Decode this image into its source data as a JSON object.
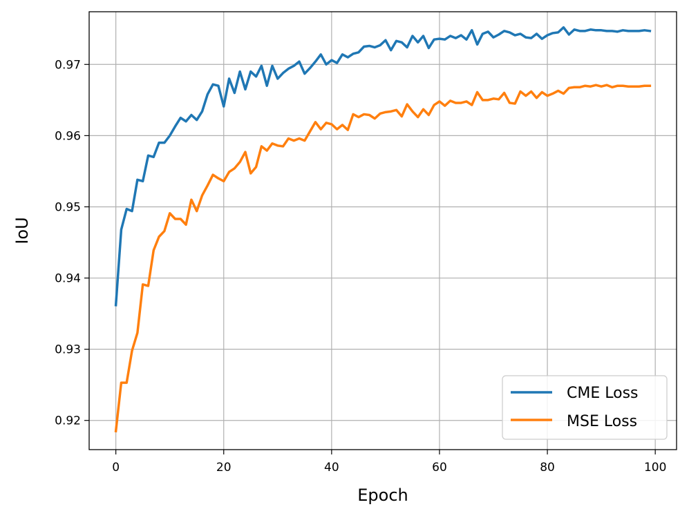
{
  "chart_data": {
    "type": "line",
    "title": "",
    "xlabel": "Epoch",
    "ylabel": "IoU",
    "xlim": [
      -4.95,
      103.95
    ],
    "ylim": [
      0.9159,
      0.9774
    ],
    "xticks": [
      0,
      20,
      40,
      60,
      80,
      100
    ],
    "xtick_labels": [
      "0",
      "20",
      "40",
      "60",
      "80",
      "100"
    ],
    "yticks": [
      0.92,
      0.93,
      0.94,
      0.95,
      0.96,
      0.97
    ],
    "ytick_labels": [
      "0.92",
      "0.93",
      "0.94",
      "0.95",
      "0.96",
      "0.97"
    ],
    "grid": true,
    "legend_position": "lower-right",
    "x": [
      0,
      1,
      2,
      3,
      4,
      5,
      6,
      7,
      8,
      9,
      10,
      11,
      12,
      13,
      14,
      15,
      16,
      17,
      18,
      19,
      20,
      21,
      22,
      23,
      24,
      25,
      26,
      27,
      28,
      29,
      30,
      31,
      32,
      33,
      34,
      35,
      36,
      37,
      38,
      39,
      40,
      41,
      42,
      43,
      44,
      45,
      46,
      47,
      48,
      49,
      50,
      51,
      52,
      53,
      54,
      55,
      56,
      57,
      58,
      59,
      60,
      61,
      62,
      63,
      64,
      65,
      66,
      67,
      68,
      69,
      70,
      71,
      72,
      73,
      74,
      75,
      76,
      77,
      78,
      79,
      80,
      81,
      82,
      83,
      84,
      85,
      86,
      87,
      88,
      89,
      90,
      91,
      92,
      93,
      94,
      95,
      96,
      97,
      98,
      99
    ],
    "series": [
      {
        "name": "CME Loss",
        "color": "#1f77b4",
        "values": [
          0.9362,
          0.9468,
          0.9497,
          0.9494,
          0.9538,
          0.9536,
          0.9572,
          0.957,
          0.959,
          0.959,
          0.96,
          0.9613,
          0.9625,
          0.962,
          0.9629,
          0.9622,
          0.9634,
          0.9658,
          0.9672,
          0.967,
          0.9641,
          0.968,
          0.966,
          0.969,
          0.9665,
          0.969,
          0.9683,
          0.9698,
          0.967,
          0.9698,
          0.968,
          0.9688,
          0.9694,
          0.9698,
          0.9704,
          0.9687,
          0.9695,
          0.9704,
          0.9714,
          0.97,
          0.9706,
          0.9702,
          0.9714,
          0.971,
          0.9715,
          0.9717,
          0.9725,
          0.9726,
          0.9724,
          0.9727,
          0.9734,
          0.972,
          0.9733,
          0.9731,
          0.9724,
          0.974,
          0.9731,
          0.974,
          0.9723,
          0.9735,
          0.9736,
          0.9735,
          0.974,
          0.9737,
          0.9741,
          0.9735,
          0.9748,
          0.9728,
          0.9743,
          0.9746,
          0.9738,
          0.9742,
          0.9747,
          0.9745,
          0.9741,
          0.9743,
          0.9738,
          0.9737,
          0.9743,
          0.9736,
          0.9741,
          0.9744,
          0.9745,
          0.9752,
          0.9742,
          0.9749,
          0.9747,
          0.9747,
          0.9749,
          0.9748,
          0.9748,
          0.9747,
          0.9747,
          0.9746,
          0.9748,
          0.9747,
          0.9747,
          0.9747,
          0.9748,
          0.9747
        ]
      },
      {
        "name": "MSE Loss",
        "color": "#ff7f0e",
        "values": [
          0.9185,
          0.9253,
          0.9253,
          0.9298,
          0.9323,
          0.9391,
          0.9389,
          0.9439,
          0.9458,
          0.9466,
          0.9491,
          0.9483,
          0.9483,
          0.9475,
          0.951,
          0.9494,
          0.9516,
          0.953,
          0.9545,
          0.954,
          0.9536,
          0.9549,
          0.9554,
          0.9563,
          0.9577,
          0.9547,
          0.9556,
          0.9585,
          0.9579,
          0.9589,
          0.9586,
          0.9585,
          0.9596,
          0.9593,
          0.9596,
          0.9593,
          0.9606,
          0.9619,
          0.9609,
          0.9618,
          0.9616,
          0.9609,
          0.9615,
          0.9608,
          0.963,
          0.9626,
          0.963,
          0.9629,
          0.9624,
          0.9631,
          0.9633,
          0.9634,
          0.9636,
          0.9627,
          0.9644,
          0.9634,
          0.9626,
          0.9637,
          0.9629,
          0.9643,
          0.9648,
          0.9642,
          0.9649,
          0.9646,
          0.9646,
          0.9648,
          0.9643,
          0.9661,
          0.965,
          0.965,
          0.9652,
          0.9651,
          0.966,
          0.9646,
          0.9645,
          0.9662,
          0.9656,
          0.9662,
          0.9653,
          0.9661,
          0.9656,
          0.9659,
          0.9663,
          0.9659,
          0.9667,
          0.9668,
          0.9668,
          0.967,
          0.9669,
          0.9671,
          0.9669,
          0.9671,
          0.9668,
          0.967,
          0.967,
          0.9669,
          0.9669,
          0.9669,
          0.967,
          0.967
        ]
      }
    ]
  }
}
